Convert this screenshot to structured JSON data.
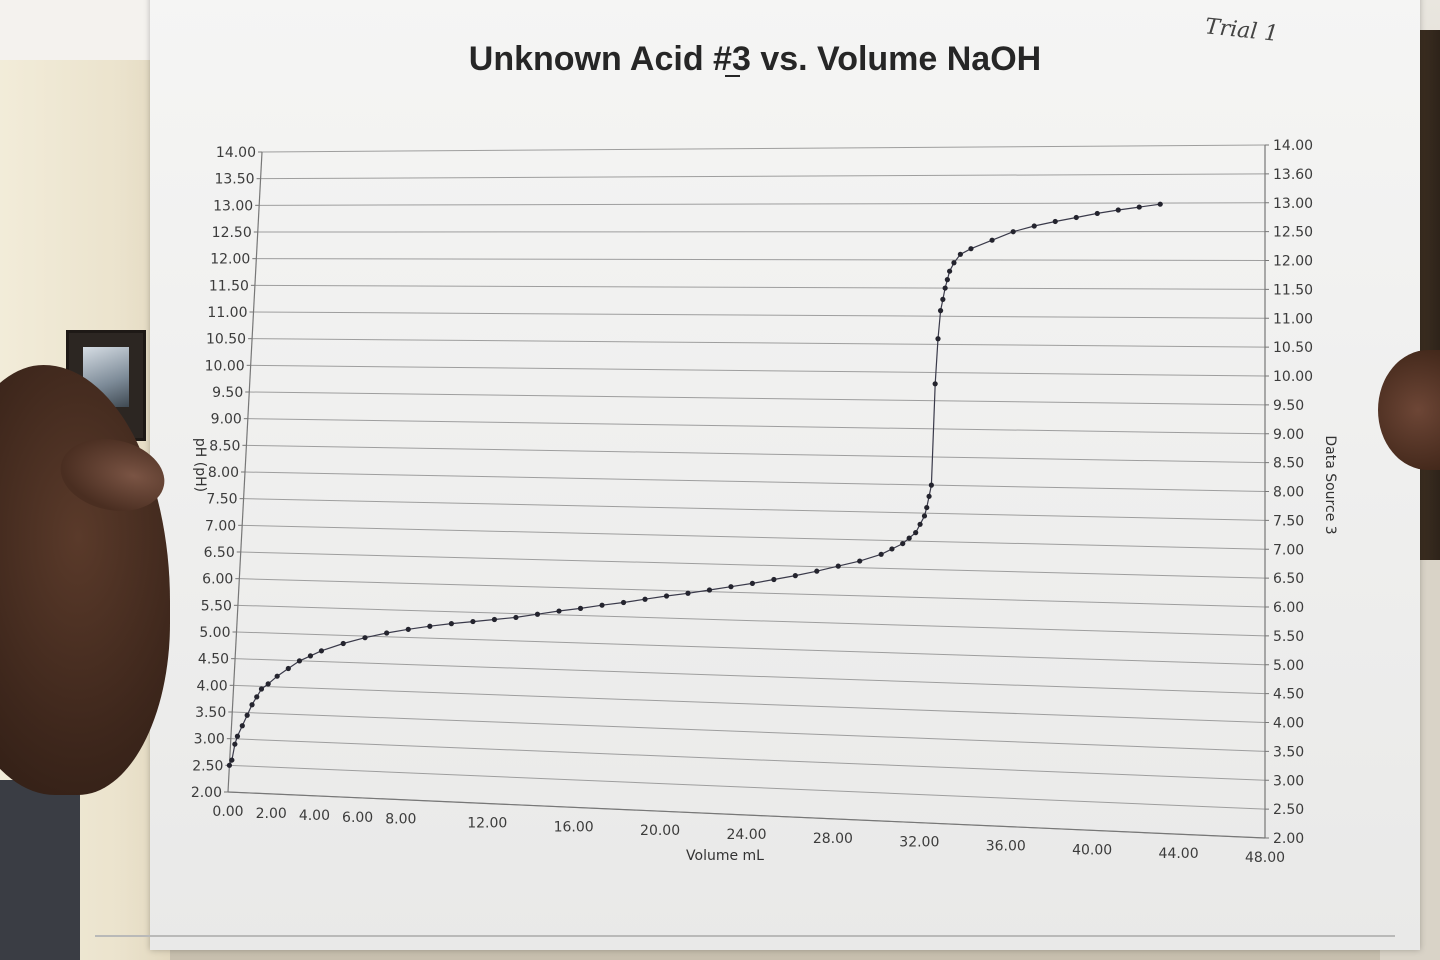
{
  "chart_data": {
    "type": "scatter",
    "title": "Unknown Acid #3 vs. Volume NaOH",
    "xlabel": "Volume  mL",
    "ylabel": "pH (pH)",
    "y2label": "Data Source 3",
    "xlim": [
      0,
      48
    ],
    "ylim": [
      2,
      14
    ],
    "xticks": [
      "0.00",
      "2.00",
      "4.00",
      "6.00",
      "8.00",
      "12.00",
      "16.00",
      "20.00",
      "24.00",
      "28.00",
      "32.00",
      "36.00",
      "40.00",
      "44.00",
      "48.00"
    ],
    "yticks_left": [
      "2.00",
      "2.50",
      "3.00",
      "3.50",
      "4.00",
      "4.50",
      "5.00",
      "5.50",
      "6.00",
      "6.50",
      "7.00",
      "7.50",
      "8.00",
      "8.50",
      "9.00",
      "9.50",
      "10.00",
      "10.50",
      "11.00",
      "11.50",
      "12.00",
      "12.50",
      "13.00",
      "13.50",
      "14.00"
    ],
    "yticks_right": [
      "2.00",
      "2.50",
      "3.00",
      "3.50",
      "4.00",
      "4.50",
      "5.00",
      "5.50",
      "6.00",
      "6.50",
      "7.00",
      "7.50",
      "8.00",
      "8.50",
      "9.00",
      "9.50",
      "10.00",
      "10.50",
      "11.00",
      "11.50",
      "12.00",
      "12.50",
      "13.00",
      "13.60",
      "14.00"
    ],
    "grid": "horizontal",
    "series": [
      {
        "x": [
          0.0,
          0.1,
          0.2,
          0.3,
          0.5,
          0.7,
          0.9,
          1.1,
          1.3,
          1.6,
          2.0,
          2.5,
          3.0,
          3.5,
          4.0,
          5.0,
          6.0,
          7.0,
          8.0,
          9.0,
          10.0,
          11.0,
          12.0,
          13.0,
          14.0,
          15.0,
          16.0,
          17.0,
          18.0,
          19.0,
          20.0,
          21.0,
          22.0,
          23.0,
          24.0,
          25.0,
          26.0,
          27.0,
          28.0,
          29.0,
          30.0,
          30.5,
          31.0,
          31.3,
          31.6,
          31.8,
          32.0,
          32.1,
          32.2,
          32.3,
          32.4,
          32.5,
          32.6,
          32.7,
          32.8,
          32.9,
          33.0,
          33.2,
          33.5,
          34.0,
          35.0,
          36.0,
          37.0,
          38.0,
          39.0,
          40.0,
          41.0,
          42.0,
          43.0
        ],
        "y": [
          2.5,
          2.6,
          2.9,
          3.05,
          3.25,
          3.45,
          3.65,
          3.8,
          3.95,
          4.05,
          4.2,
          4.35,
          4.5,
          4.6,
          4.7,
          4.85,
          4.97,
          5.07,
          5.15,
          5.22,
          5.28,
          5.33,
          5.38,
          5.43,
          5.5,
          5.57,
          5.63,
          5.7,
          5.76,
          5.83,
          5.9,
          5.96,
          6.03,
          6.1,
          6.17,
          6.25,
          6.33,
          6.42,
          6.52,
          6.62,
          6.75,
          6.85,
          6.95,
          7.05,
          7.15,
          7.3,
          7.45,
          7.6,
          7.8,
          8.0,
          9.8,
          10.6,
          11.1,
          11.3,
          11.5,
          11.65,
          11.8,
          11.95,
          12.1,
          12.2,
          12.35,
          12.5,
          12.6,
          12.68,
          12.75,
          12.82,
          12.88,
          12.93,
          12.98
        ]
      }
    ]
  },
  "annotation": {
    "handwritten_note": "Trial 1"
  }
}
